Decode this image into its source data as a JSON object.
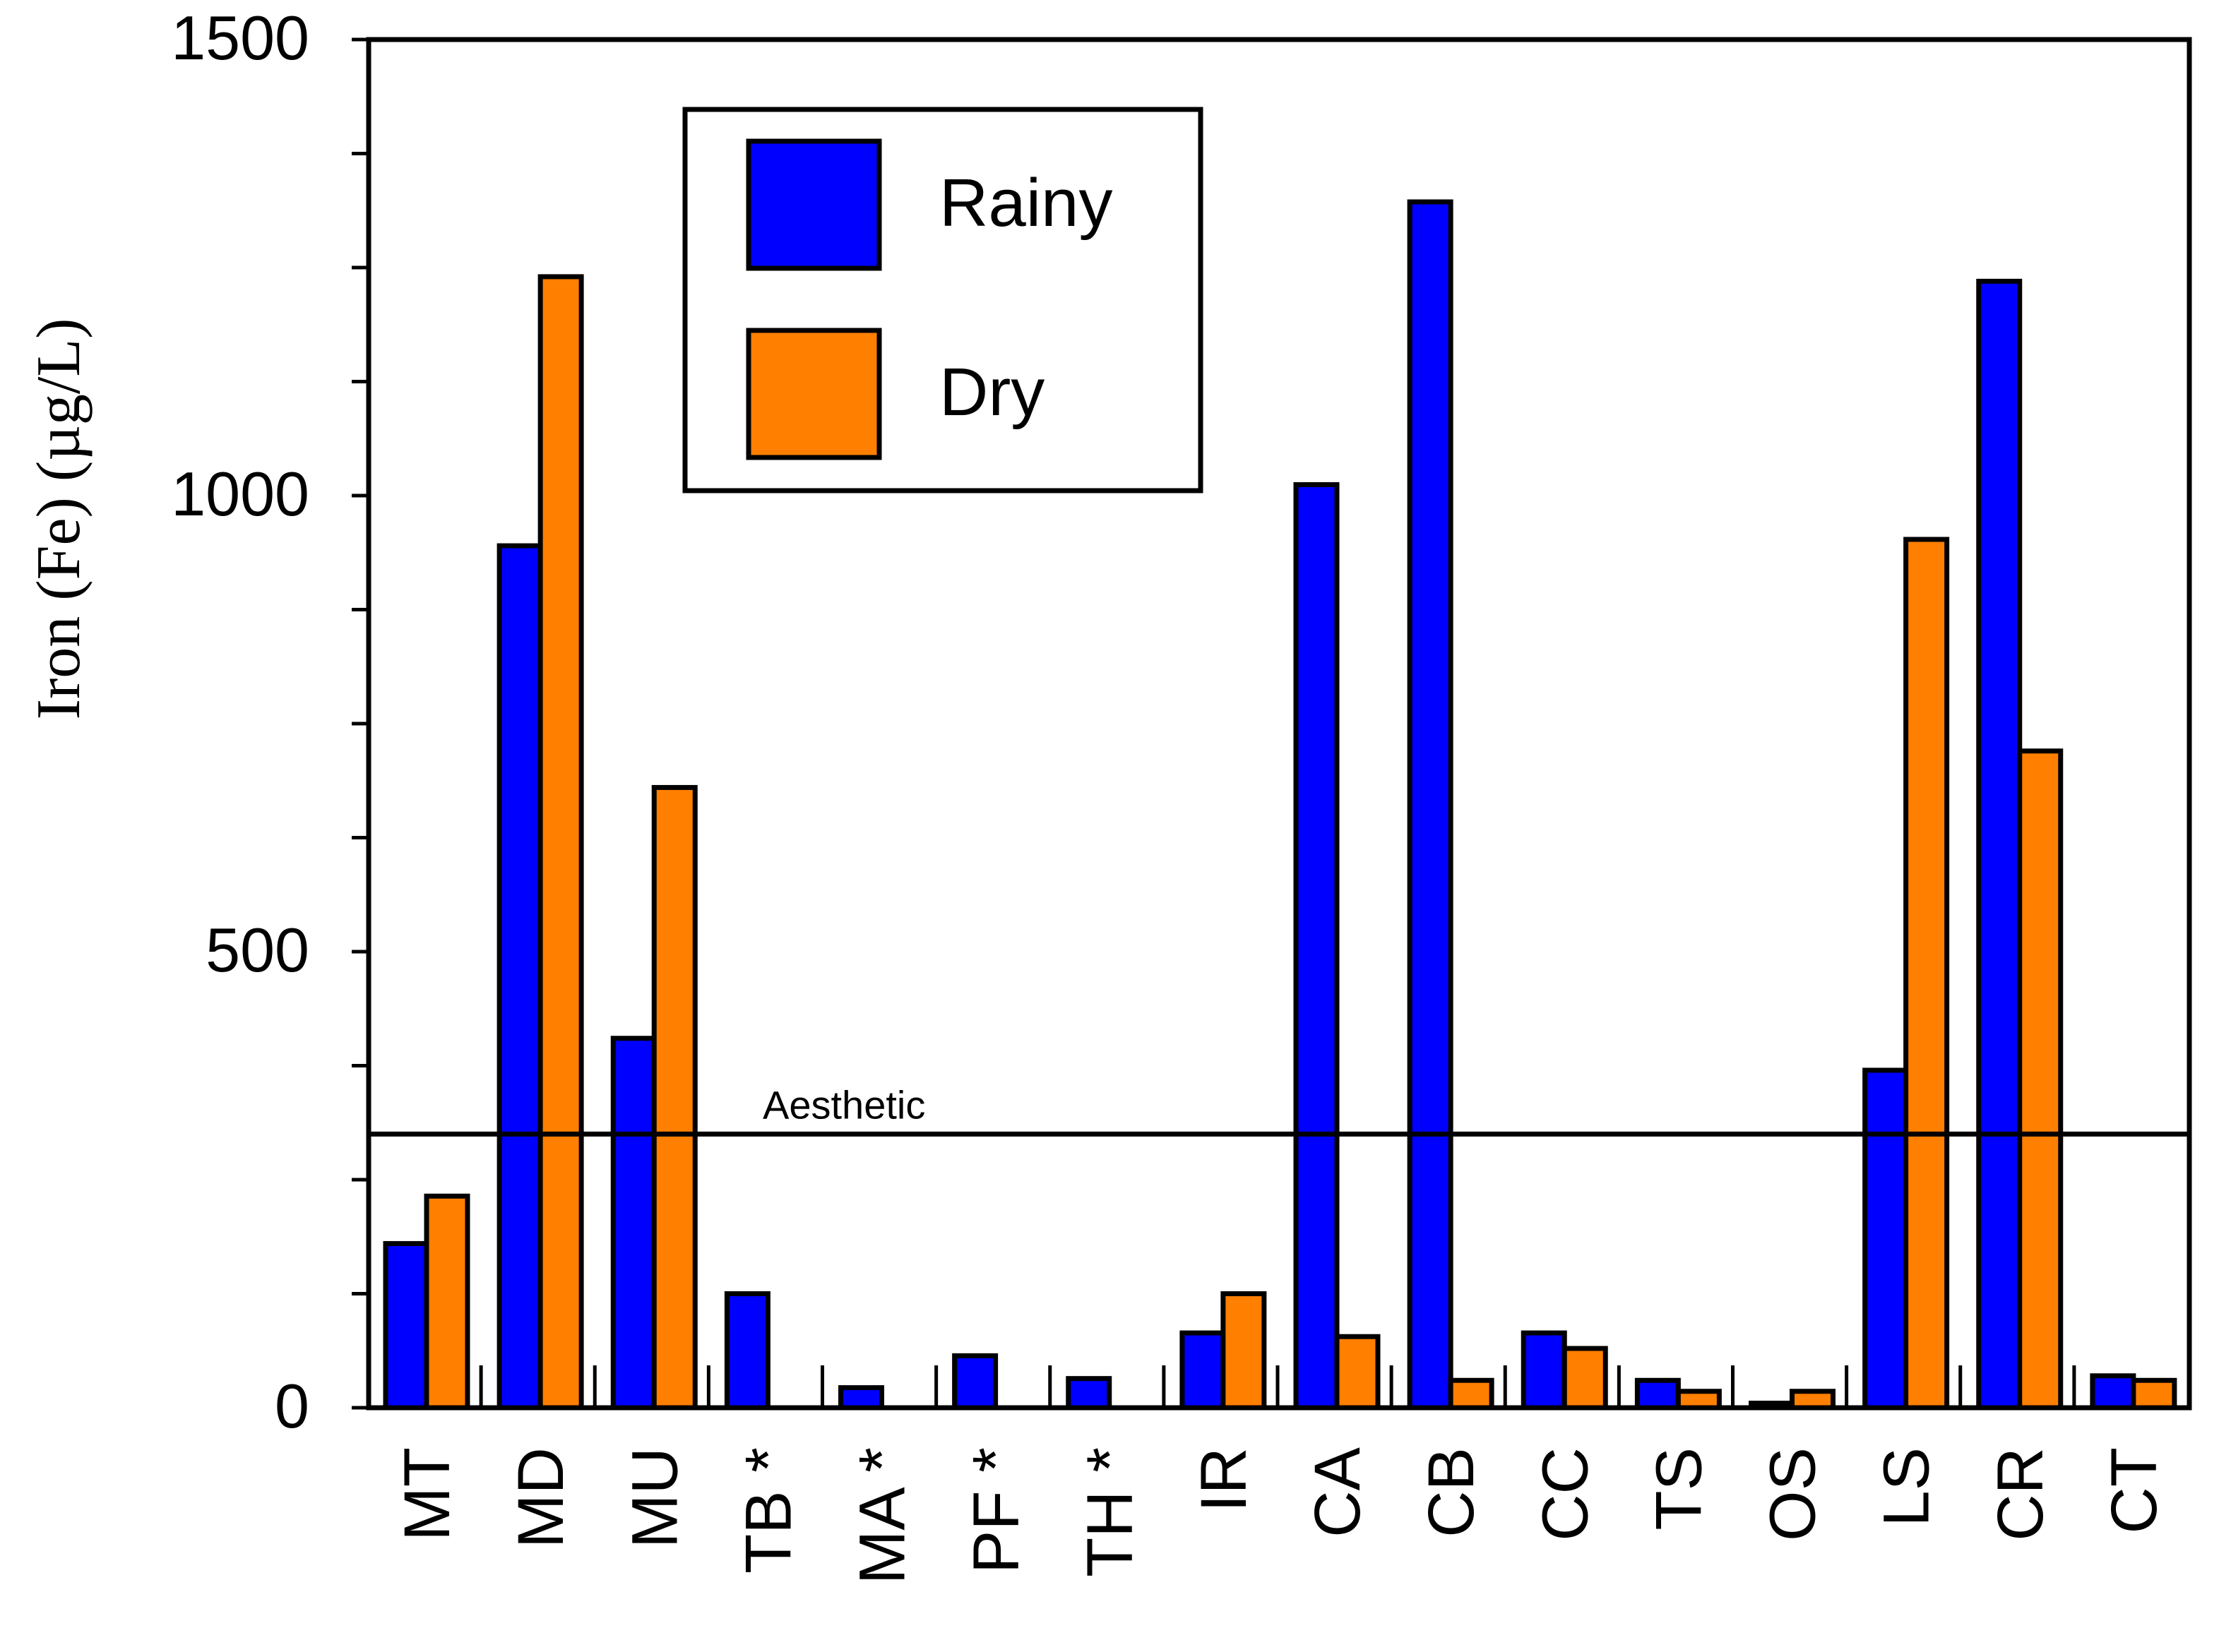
{
  "chart_data": {
    "type": "bar",
    "title": "",
    "xlabel": "",
    "ylabel": "Iron (Fe) (µg/L)",
    "ylim": [
      0,
      1500
    ],
    "y_ticks": [
      "0",
      "500",
      "1000",
      "1500"
    ],
    "categories": [
      "MT",
      "MD",
      "MU",
      "TB *",
      "MA *",
      "PF *",
      "TH *",
      "IR",
      "CA",
      "CB",
      "CC",
      "TS",
      "OS",
      "LS",
      "CR",
      "CT"
    ],
    "series": [
      {
        "name": "Rainy",
        "color": "#0000ff",
        "values": [
          180,
          945,
          405,
          125,
          22,
          57,
          32,
          82,
          1012,
          1322,
          82,
          30,
          5,
          370,
          1235,
          35
        ]
      },
      {
        "name": "Dry",
        "color": "#ff7f00",
        "values": [
          232,
          1240,
          680,
          0,
          0,
          0,
          0,
          125,
          78,
          30,
          65,
          18,
          18,
          952,
          720,
          30
        ]
      }
    ],
    "reference_lines": [
      {
        "label": "Aesthetic",
        "value": 300
      }
    ],
    "legend": {
      "position": "top-left",
      "entries": [
        "Rainy",
        "Dry"
      ]
    }
  }
}
